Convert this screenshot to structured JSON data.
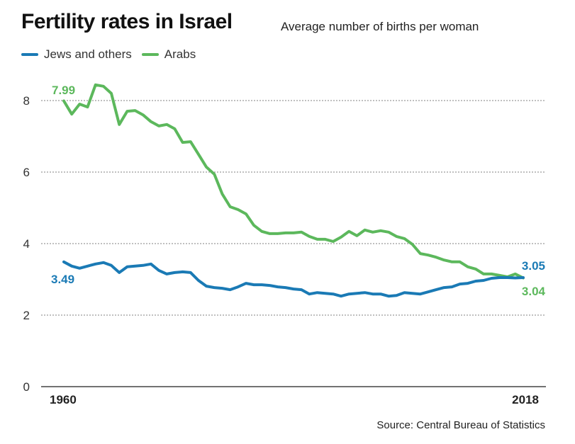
{
  "chart_data": {
    "type": "line",
    "title": "Fertility rates in Israel",
    "subtitle": "Average number of births per woman",
    "xlabel": "",
    "ylabel": "",
    "xlim": [
      1960,
      2018
    ],
    "ylim": [
      0,
      8.8
    ],
    "yticks": [
      0,
      2,
      4,
      6,
      8
    ],
    "xtick_labels": [
      "1960",
      "2018"
    ],
    "grid": true,
    "legend_position": "top-left",
    "source": "Source: Central Bureau of Statistics",
    "x_start": 1960,
    "series": [
      {
        "name": "Jews and others",
        "color": "#1a7ab5",
        "start_label": "3.49",
        "end_label": "3.05",
        "values": [
          3.49,
          3.37,
          3.31,
          3.37,
          3.43,
          3.47,
          3.39,
          3.19,
          3.35,
          3.37,
          3.39,
          3.43,
          3.25,
          3.15,
          3.19,
          3.21,
          3.19,
          2.97,
          2.81,
          2.77,
          2.75,
          2.71,
          2.79,
          2.89,
          2.85,
          2.85,
          2.83,
          2.79,
          2.77,
          2.73,
          2.71,
          2.59,
          2.63,
          2.61,
          2.59,
          2.53,
          2.59,
          2.61,
          2.63,
          2.59,
          2.59,
          2.53,
          2.55,
          2.63,
          2.61,
          2.59,
          2.65,
          2.71,
          2.77,
          2.79,
          2.87,
          2.89,
          2.95,
          2.97,
          3.03,
          3.05,
          3.05,
          3.04,
          3.05
        ]
      },
      {
        "name": "Arabs",
        "color": "#5cb85c",
        "start_label": "7.99",
        "end_label": "3.04",
        "values": [
          7.99,
          7.62,
          7.9,
          7.82,
          8.44,
          8.4,
          8.2,
          7.33,
          7.7,
          7.72,
          7.6,
          7.41,
          7.29,
          7.33,
          7.21,
          6.83,
          6.85,
          6.5,
          6.14,
          5.94,
          5.39,
          5.03,
          4.95,
          4.83,
          4.51,
          4.34,
          4.28,
          4.28,
          4.3,
          4.3,
          4.32,
          4.2,
          4.12,
          4.12,
          4.06,
          4.18,
          4.34,
          4.22,
          4.38,
          4.32,
          4.36,
          4.32,
          4.2,
          4.14,
          3.98,
          3.72,
          3.68,
          3.62,
          3.54,
          3.49,
          3.49,
          3.35,
          3.29,
          3.15,
          3.15,
          3.11,
          3.07,
          3.15,
          3.04
        ]
      }
    ]
  }
}
